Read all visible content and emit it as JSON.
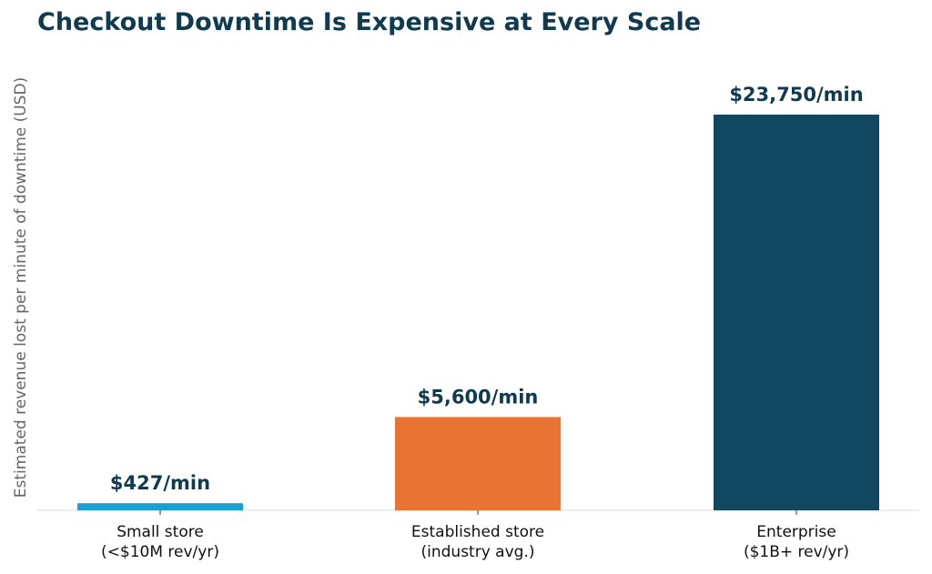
{
  "chart_data": {
    "type": "bar",
    "title": "Checkout Downtime Is Expensive at Every Scale",
    "xlabel": "",
    "ylabel": "Estimated revenue lost per minute of downtime (USD)",
    "categories": [
      [
        "Small store",
        "(<$10M rev/yr)"
      ],
      [
        "Established store",
        "(industry avg.)"
      ],
      [
        "Enterprise",
        "($1B+ rev/yr)"
      ]
    ],
    "values": [
      427,
      5600,
      23750
    ],
    "value_labels": [
      "$427/min",
      "$5,600/min",
      "$23,750/min"
    ],
    "colors": [
      "#1a9fcf",
      "#e87333",
      "#11475f"
    ],
    "ylim": [
      0,
      25000
    ],
    "grid": false,
    "legend": "none"
  }
}
